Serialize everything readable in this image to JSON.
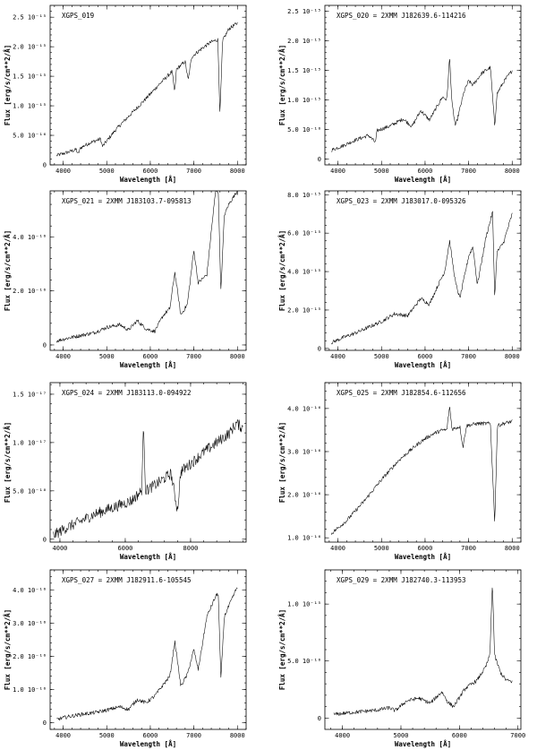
{
  "chart_data": [
    {
      "type": "line",
      "title": "XGPS_019",
      "xlabel": "Wavelength [Å]",
      "ylabel": "Flux [erg/s/cm**2/Å]",
      "xlim": [
        3700,
        8200
      ],
      "ylim": [
        0,
        2.7e-15
      ],
      "xticks": [
        {
          "v": 4000,
          "t": "4000"
        },
        {
          "v": 5000,
          "t": "5000"
        },
        {
          "v": 6000,
          "t": "6000"
        },
        {
          "v": 7000,
          "t": "7000"
        },
        {
          "v": 8000,
          "t": "8000"
        }
      ],
      "yticks": [
        {
          "v": 0,
          "t": "0"
        },
        {
          "v": 5e-16,
          "t": "5.0 10⁻¹⁶"
        },
        {
          "v": 1e-15,
          "t": "1.0 10⁻¹⁵"
        },
        {
          "v": 1.5e-15,
          "t": "1.5 10⁻¹⁵"
        },
        {
          "v": 2e-15,
          "t": "2.0 10⁻¹⁵"
        },
        {
          "v": 2.5e-15,
          "t": "2.5 10⁻¹⁵"
        }
      ],
      "x": [
        3850,
        4000,
        4300,
        4340,
        4400,
        4600,
        4861,
        4900,
        5200,
        5500,
        5900,
        6200,
        6500,
        6560,
        6600,
        6800,
        6870,
        6950,
        7200,
        7400,
        7550,
        7600,
        7660,
        7800,
        8000
      ],
      "y": [
        1.6e-16,
        1.9e-16,
        2.6e-16,
        1.8e-16,
        2.9e-16,
        3.7e-16,
        4.4e-16,
        3.1e-16,
        5.9e-16,
        8.2e-16,
        1.12e-15,
        1.36e-15,
        1.58e-15,
        1.22e-15,
        1.62e-15,
        1.75e-15,
        1.43e-15,
        1.83e-15,
        1.98e-15,
        2.08e-15,
        2.12e-15,
        8.5e-16,
        2.1e-15,
        2.3e-15,
        2.4e-15
      ]
    },
    {
      "type": "line",
      "title": "XGPS_020 = 2XMM J182639.6-114216",
      "xlabel": "Wavelength [Å]",
      "ylabel": "Flux [erg/s/cm**2/Å]",
      "xlim": [
        3700,
        8200
      ],
      "ylim": [
        -1e-16,
        2.6e-15
      ],
      "xticks": [
        {
          "v": 4000,
          "t": "4000"
        },
        {
          "v": 5000,
          "t": "5000"
        },
        {
          "v": 6000,
          "t": "6000"
        },
        {
          "v": 7000,
          "t": "7000"
        },
        {
          "v": 8000,
          "t": "8000"
        }
      ],
      "yticks": [
        {
          "v": 0,
          "t": "0"
        },
        {
          "v": 5e-16,
          "t": "5.0 10⁻¹⁶"
        },
        {
          "v": 1e-15,
          "t": "1.0 10⁻¹⁵"
        },
        {
          "v": 1.5e-15,
          "t": "1.5 10⁻¹⁵"
        },
        {
          "v": 2e-15,
          "t": "2.0 10⁻¹⁵"
        },
        {
          "v": 2.5e-15,
          "t": "2.5 10⁻¹⁵"
        }
      ],
      "x": [
        3850,
        4100,
        4400,
        4700,
        4861,
        4900,
        5200,
        5500,
        5700,
        5900,
        6100,
        6300,
        6400,
        6500,
        6563,
        6620,
        6700,
        6800,
        6900,
        7000,
        7100,
        7300,
        7500,
        7600,
        7650,
        7800,
        8000
      ],
      "y": [
        1.5e-16,
        2.2e-16,
        3.2e-16,
        4e-16,
        2.8e-16,
        4.8e-16,
        5.6e-16,
        6.8e-16,
        5.5e-16,
        8.2e-16,
        6.6e-16,
        9.2e-16,
        1.05e-15,
        1e-15,
        1.72e-15,
        9.2e-16,
        5.5e-16,
        8.5e-16,
        1.15e-15,
        1.32e-15,
        1.25e-15,
        1.45e-15,
        1.55e-15,
        5.5e-16,
        1.1e-15,
        1.3e-15,
        1.5e-15
      ]
    },
    {
      "type": "line",
      "title": "XGPS_021 = 2XMM J183103.7-095813",
      "xlabel": "Wavelength [Å]",
      "ylabel": "Flux [erg/s/cm**2/Å]",
      "xlim": [
        3700,
        8200
      ],
      "ylim": [
        -2e-17,
        5.7e-16
      ],
      "xticks": [
        {
          "v": 4000,
          "t": "4000"
        },
        {
          "v": 5000,
          "t": "5000"
        },
        {
          "v": 6000,
          "t": "6000"
        },
        {
          "v": 7000,
          "t": "7000"
        },
        {
          "v": 8000,
          "t": "8000"
        }
      ],
      "yticks": [
        {
          "v": 0,
          "t": "0"
        },
        {
          "v": 2e-16,
          "t": "2.0 10⁻¹⁶"
        },
        {
          "v": 4e-16,
          "t": "4.0 10⁻¹⁶"
        }
      ],
      "x": [
        3850,
        4100,
        4400,
        4700,
        5000,
        5300,
        5500,
        5700,
        5900,
        6100,
        6300,
        6450,
        6563,
        6700,
        6850,
        7000,
        7100,
        7300,
        7400,
        7500,
        7560,
        7620,
        7700,
        7800,
        8000
      ],
      "y": [
        1.5e-17,
        2.5e-17,
        3.5e-17,
        4.5e-17,
        6.5e-17,
        7.5e-17,
        5.5e-17,
        9e-17,
        6e-17,
        5e-17,
        1.1e-16,
        1.35e-16,
        2.7e-16,
        1.1e-16,
        1.5e-16,
        3.5e-16,
        2.3e-16,
        2.6e-16,
        4.2e-16,
        5.7e-16,
        5.7e-16,
        2e-16,
        4.8e-16,
        5.2e-16,
        5.7e-16
      ]
    },
    {
      "type": "line",
      "title": "XGPS_023 = 2XMM J183017.0-095326",
      "xlabel": "Wavelength [Å]",
      "ylabel": "Flux [erg/s/cm**2/Å]",
      "xlim": [
        3700,
        8200
      ],
      "ylim": [
        -1e-16,
        8.2e-15
      ],
      "xticks": [
        {
          "v": 4000,
          "t": "4000"
        },
        {
          "v": 5000,
          "t": "5000"
        },
        {
          "v": 6000,
          "t": "6000"
        },
        {
          "v": 7000,
          "t": "7000"
        },
        {
          "v": 8000,
          "t": "8000"
        }
      ],
      "yticks": [
        {
          "v": 0,
          "t": "0"
        },
        {
          "v": 2e-15,
          "t": "2.0 10⁻¹⁵"
        },
        {
          "v": 4e-15,
          "t": "4.0 10⁻¹⁵"
        },
        {
          "v": 6e-15,
          "t": "6.0 10⁻¹⁵"
        },
        {
          "v": 8e-15,
          "t": "8.0 10⁻¹⁵"
        }
      ],
      "x": [
        3850,
        4100,
        4400,
        4700,
        5000,
        5300,
        5600,
        5900,
        6100,
        6300,
        6450,
        6563,
        6700,
        6800,
        7000,
        7100,
        7200,
        7400,
        7550,
        7600,
        7650,
        7800,
        8000
      ],
      "y": [
        3e-16,
        5.5e-16,
        8e-16,
        1.1e-15,
        1.4e-15,
        1.8e-15,
        1.7e-15,
        2.6e-15,
        2.3e-15,
        3.3e-15,
        4e-15,
        5.6e-15,
        3.4e-15,
        2.6e-15,
        4.8e-15,
        5.3e-15,
        3.3e-15,
        5.8e-15,
        7.1e-15,
        2.6e-15,
        5e-15,
        5.5e-15,
        7e-15
      ]
    },
    {
      "type": "line",
      "title": "XGPS_024 = 2XMM J183113.0-094922",
      "xlabel": "Wavelength [Å]",
      "ylabel": "Flux [erg/s/cm**2/Å]",
      "xlim": [
        3700,
        9700
      ],
      "ylim": [
        -3e-19,
        1.62e-17
      ],
      "xticks": [
        {
          "v": 4000,
          "t": "4000"
        },
        {
          "v": 6000,
          "t": "6000"
        },
        {
          "v": 8000,
          "t": "8000"
        }
      ],
      "yticks": [
        {
          "v": 0,
          "t": "0"
        },
        {
          "v": 5e-18,
          "t": "5.0 10⁻¹⁸"
        },
        {
          "v": 1e-17,
          "t": "1.0 10⁻¹⁷"
        },
        {
          "v": 1.5e-17,
          "t": "1.5 10⁻¹⁷"
        }
      ],
      "x": [
        3800,
        4200,
        4600,
        5000,
        5400,
        5800,
        6200,
        6500,
        6563,
        6620,
        7000,
        7400,
        7600,
        7700,
        8000,
        8400,
        8800,
        9200,
        9400,
        9600
      ],
      "y": [
        4e-19,
        1.2e-18,
        1.8e-18,
        2.5e-18,
        3e-18,
        3.5e-18,
        4e-18,
        5e-18,
        1.2e-17,
        5e-18,
        5.8e-18,
        6.8e-18,
        3e-18,
        7e-18,
        7.8e-18,
        9e-18,
        1e-17,
        1.1e-17,
        1.2e-17,
        1.15e-17
      ]
    },
    {
      "type": "line",
      "title": "XGPS_025 = 2XMM J182854.6-112656",
      "xlabel": "Wavelength [Å]",
      "ylabel": "Flux [erg/s/cm**2/Å]",
      "xlim": [
        3700,
        8200
      ],
      "ylim": [
        9e-17,
        4.6e-16
      ],
      "xticks": [
        {
          "v": 4000,
          "t": "4000"
        },
        {
          "v": 5000,
          "t": "5000"
        },
        {
          "v": 6000,
          "t": "6000"
        },
        {
          "v": 7000,
          "t": "7000"
        },
        {
          "v": 8000,
          "t": "8000"
        }
      ],
      "yticks": [
        {
          "v": 1e-16,
          "t": "1.0 10⁻¹⁶"
        },
        {
          "v": 2e-16,
          "t": "2.0 10⁻¹⁶"
        },
        {
          "v": 3e-16,
          "t": "3.0 10⁻¹⁶"
        },
        {
          "v": 4e-16,
          "t": "4.0 10⁻¹⁶"
        }
      ],
      "x": [
        3850,
        4200,
        4600,
        5000,
        5400,
        5800,
        6000,
        6200,
        6400,
        6500,
        6563,
        6620,
        6800,
        6870,
        6950,
        7200,
        7500,
        7600,
        7660,
        7800,
        8000
      ],
      "y": [
        1.1e-16,
        1.4e-16,
        1.85e-16,
        2.35e-16,
        2.8e-16,
        3.15e-16,
        3.3e-16,
        3.42e-16,
        3.5e-16,
        3.5e-16,
        4.05e-16,
        3.52e-16,
        3.58e-16,
        3.1e-16,
        3.6e-16,
        3.65e-16,
        3.65e-16,
        1.35e-16,
        3.6e-16,
        3.65e-16,
        3.7e-16
      ]
    },
    {
      "type": "line",
      "title": "XGPS_027 = 2XMM J182911.6-105545",
      "xlabel": "Wavelength [Å]",
      "ylabel": "Flux [erg/s/cm**2/Å]",
      "xlim": [
        3700,
        8200
      ],
      "ylim": [
        -2e-17,
        4.6e-16
      ],
      "xticks": [
        {
          "v": 4000,
          "t": "4000"
        },
        {
          "v": 5000,
          "t": "5000"
        },
        {
          "v": 6000,
          "t": "6000"
        },
        {
          "v": 7000,
          "t": "7000"
        },
        {
          "v": 8000,
          "t": "8000"
        }
      ],
      "yticks": [
        {
          "v": 0,
          "t": "0"
        },
        {
          "v": 1e-16,
          "t": "1.0 10⁻¹⁶"
        },
        {
          "v": 2e-16,
          "t": "2.0 10⁻¹⁶"
        },
        {
          "v": 3e-16,
          "t": "3.0 10⁻¹⁶"
        },
        {
          "v": 4e-16,
          "t": "4.0 10⁻¹⁶"
        }
      ],
      "x": [
        3850,
        4100,
        4400,
        4700,
        5000,
        5300,
        5500,
        5700,
        5900,
        6100,
        6300,
        6450,
        6563,
        6700,
        6850,
        7000,
        7100,
        7300,
        7500,
        7560,
        7620,
        7700,
        7800,
        8000
      ],
      "y": [
        1e-17,
        1.8e-17,
        2.5e-17,
        3e-17,
        3.8e-17,
        4.8e-17,
        4e-17,
        7e-17,
        6e-17,
        8e-17,
        1.15e-16,
        1.4e-16,
        2.45e-16,
        1.1e-16,
        1.45e-16,
        2.2e-16,
        1.6e-16,
        3.2e-16,
        3.8e-16,
        3.9e-16,
        1.3e-16,
        3.2e-16,
        3.5e-16,
        4.1e-16
      ]
    },
    {
      "type": "line",
      "title": "XGPS_029 = 2XMM J182740.3-113953",
      "xlabel": "Wavelength [Å]",
      "ylabel": "Flux [erg/s/cm**2/Å]",
      "xlim": [
        3700,
        7050
      ],
      "ylim": [
        -1e-16,
        1.3e-15
      ],
      "xticks": [
        {
          "v": 4000,
          "t": "4000"
        },
        {
          "v": 5000,
          "t": "5000"
        },
        {
          "v": 6000,
          "t": "6000"
        },
        {
          "v": 7000,
          "t": "7000"
        }
      ],
      "yticks": [
        {
          "v": 0,
          "t": "0"
        },
        {
          "v": 5e-16,
          "t": "5.0 10⁻¹⁶"
        },
        {
          "v": 1e-15,
          "t": "1.0 10⁻¹⁵"
        }
      ],
      "x": [
        3850,
        4000,
        4300,
        4600,
        4800,
        4900,
        5100,
        5300,
        5500,
        5700,
        5800,
        5900,
        6100,
        6300,
        6450,
        6520,
        6563,
        6600,
        6700,
        6800,
        6900
      ],
      "y": [
        3e-17,
        4e-17,
        5.5e-17,
        7e-17,
        9e-17,
        6.5e-17,
        1.5e-16,
        1.75e-16,
        1.3e-16,
        2.3e-16,
        1.4e-16,
        1e-16,
        2.6e-16,
        3.3e-16,
        4.5e-16,
        5.5e-16,
        1.2e-15,
        5.5e-16,
        4e-16,
        3.3e-16,
        3.2e-16
      ]
    }
  ]
}
